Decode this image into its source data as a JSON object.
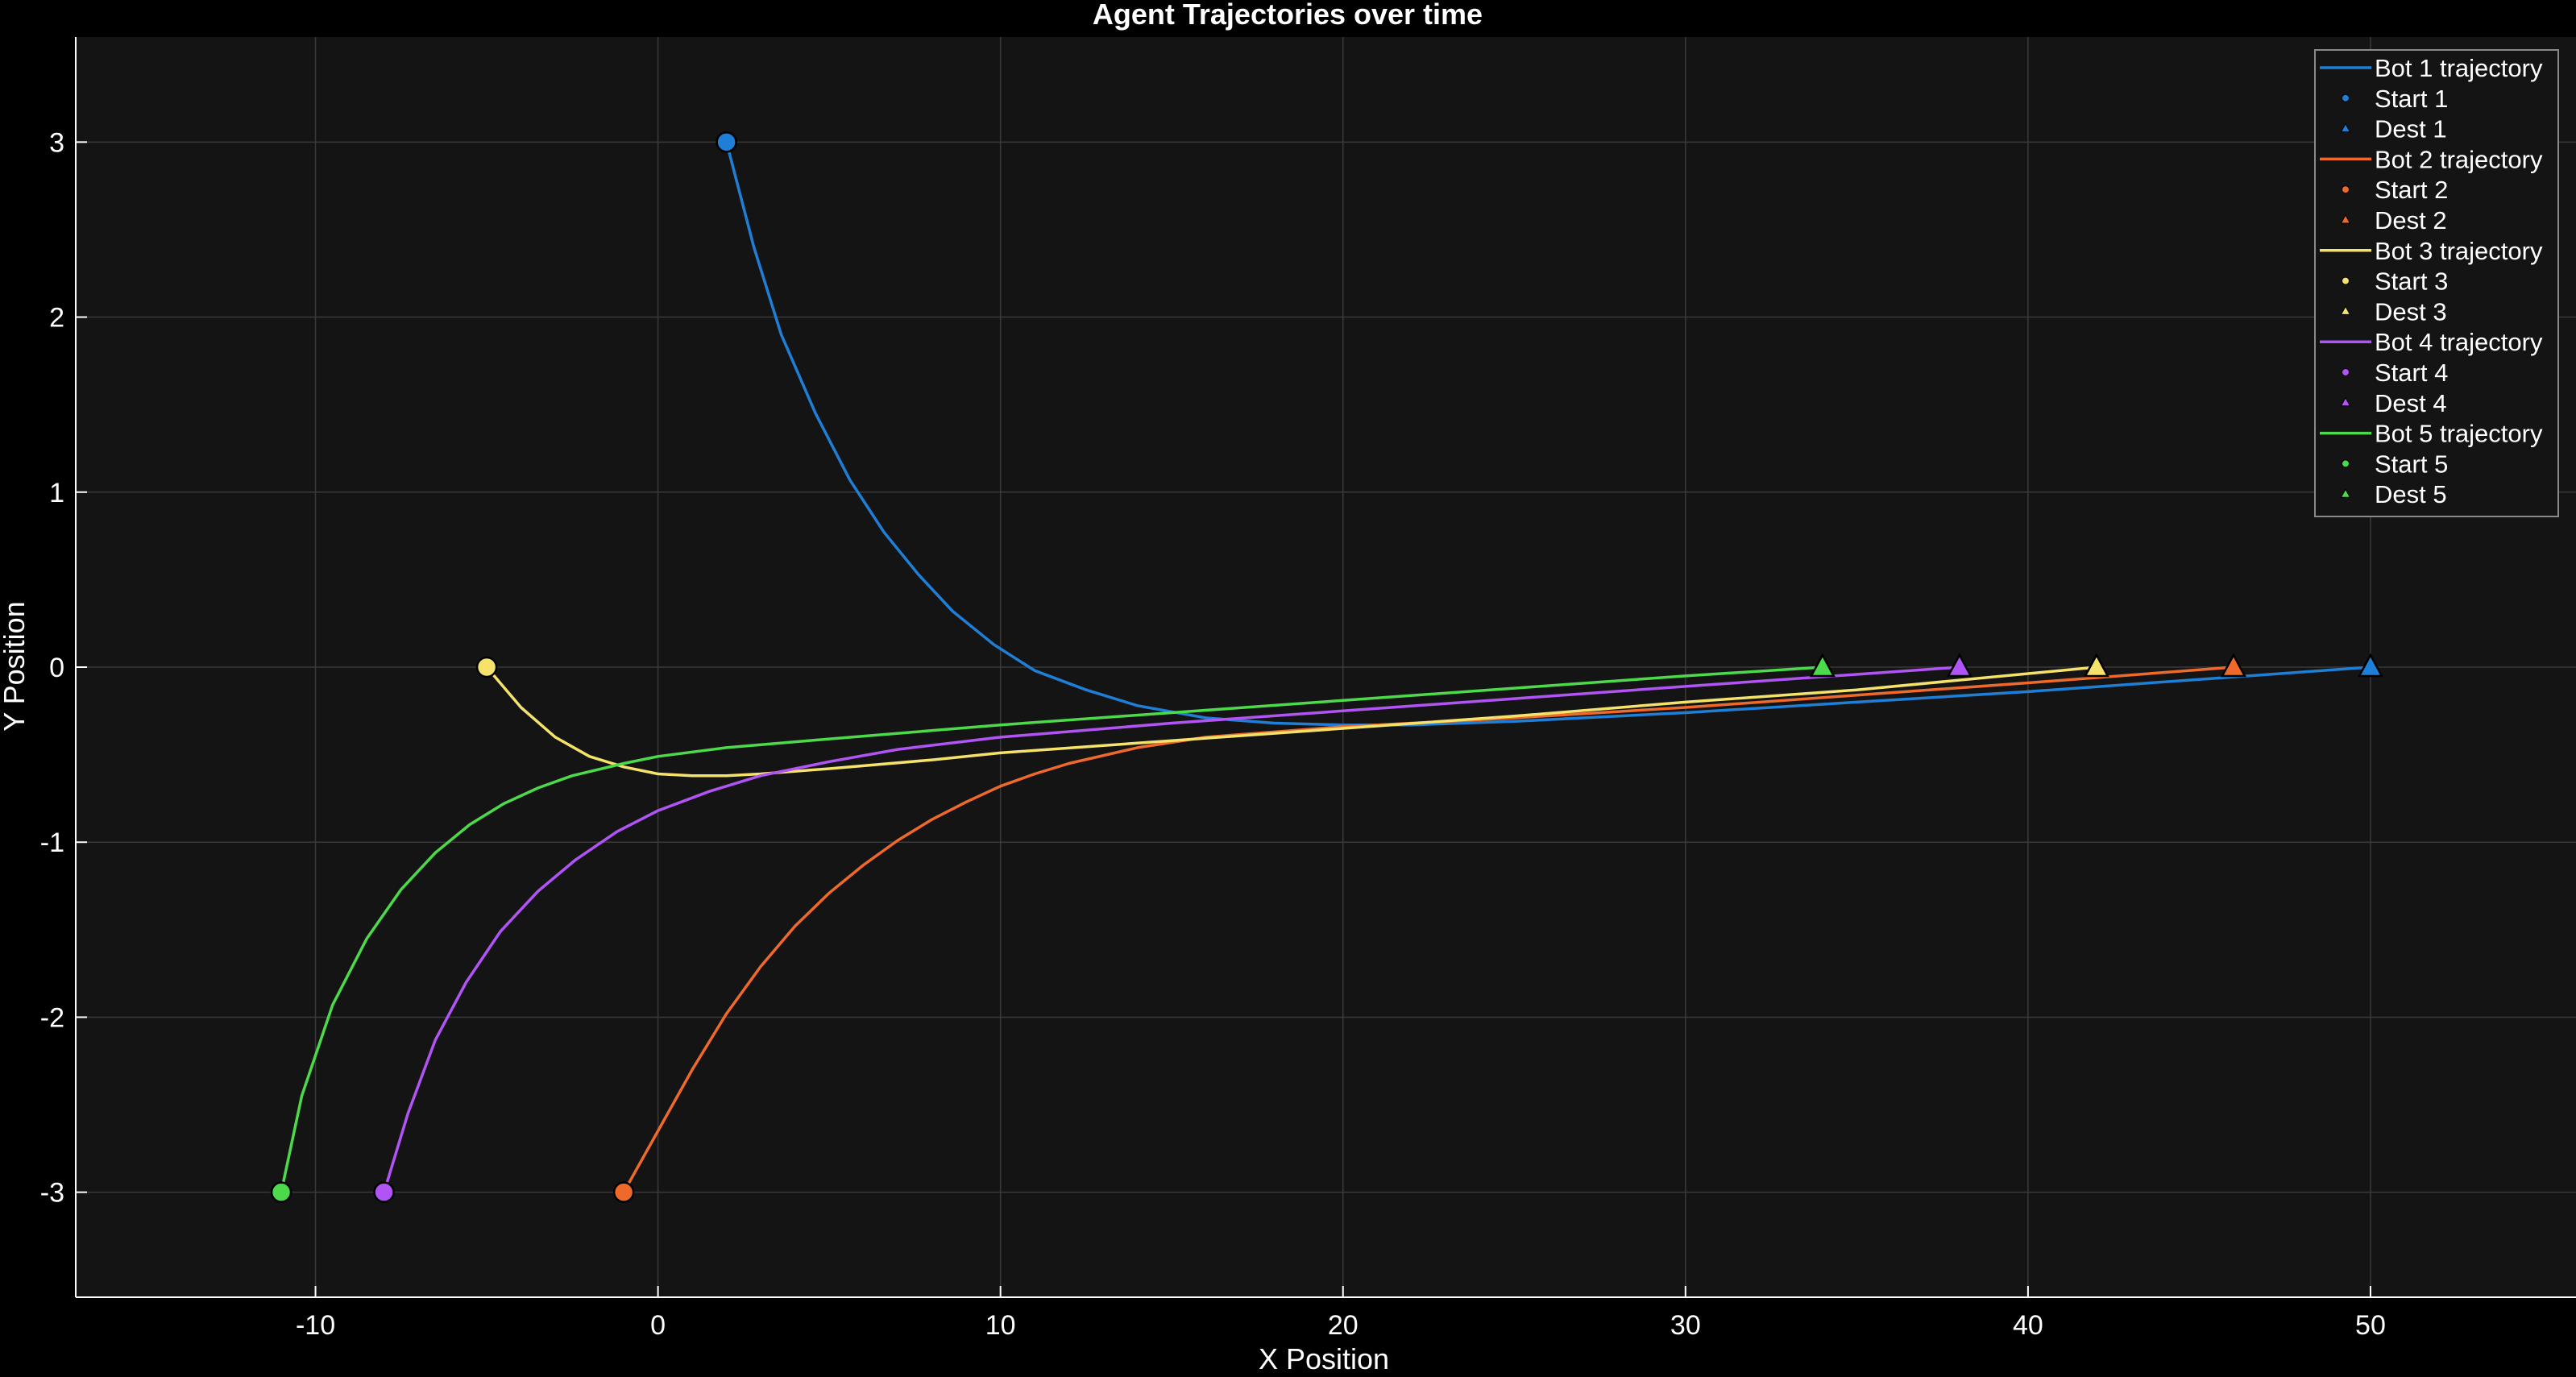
{
  "chart_data": {
    "type": "line",
    "title": "Agent Trajectories over time",
    "xlabel": "X Position",
    "ylabel": "Y Position",
    "xlim": [
      -17,
      56
    ],
    "ylim": [
      -3.6,
      3.6
    ],
    "xticks": [
      -10,
      0,
      10,
      20,
      30,
      40,
      50
    ],
    "yticks": [
      -3,
      -2,
      -1,
      0,
      1,
      2,
      3
    ],
    "xtick_labels": [
      "-10",
      "0",
      "10",
      "20",
      "30",
      "40",
      "50"
    ],
    "ytick_labels": [
      "-3",
      "-2",
      "-1",
      "0",
      "1",
      "2",
      "3"
    ],
    "grid": true,
    "legend_position": "top-right",
    "colors": {
      "background": "#000000",
      "axes_background": "#141414",
      "axis_line": "#ffffff",
      "grid": "#3a3a3a",
      "text": "#ffffff"
    },
    "series": [
      {
        "name": "Bot 1 trajectory",
        "start_label": "Start 1",
        "dest_label": "Dest 1",
        "color": "#1f7fd6",
        "start": [
          2,
          3
        ],
        "dest": [
          50,
          0
        ],
        "x": [
          2,
          2.8,
          3.6,
          4.6,
          5.6,
          6.6,
          7.6,
          8.6,
          9.8,
          11,
          12.5,
          14,
          16,
          18,
          20,
          22,
          25,
          30,
          35,
          40,
          45,
          50
        ],
        "y": [
          3,
          2.4,
          1.9,
          1.45,
          1.07,
          0.77,
          0.53,
          0.32,
          0.13,
          -0.02,
          -0.13,
          -0.22,
          -0.29,
          -0.32,
          -0.33,
          -0.33,
          -0.31,
          -0.26,
          -0.2,
          -0.14,
          -0.07,
          0
        ]
      },
      {
        "name": "Bot 2 trajectory",
        "start_label": "Start 2",
        "dest_label": "Dest 2",
        "color": "#ef6a2a",
        "start": [
          -1,
          -3
        ],
        "dest": [
          46,
          0
        ],
        "x": [
          -1,
          0,
          1,
          2,
          3,
          4,
          5,
          6,
          7,
          8,
          9,
          10,
          11,
          12,
          14,
          16,
          18,
          20,
          25,
          30,
          35,
          40,
          46
        ],
        "y": [
          -3,
          -2.65,
          -2.3,
          -1.98,
          -1.71,
          -1.48,
          -1.29,
          -1.13,
          -0.99,
          -0.87,
          -0.77,
          -0.68,
          -0.61,
          -0.55,
          -0.46,
          -0.4,
          -0.37,
          -0.34,
          -0.29,
          -0.23,
          -0.16,
          -0.09,
          0
        ]
      },
      {
        "name": "Bot 3 trajectory",
        "start_label": "Start 3",
        "dest_label": "Dest 3",
        "color": "#f5e26a",
        "start": [
          -5,
          0
        ],
        "dest": [
          42,
          0
        ],
        "x": [
          -5,
          -4,
          -3,
          -2,
          -1,
          0,
          1,
          2,
          3,
          5,
          8,
          10,
          15,
          20,
          25,
          30,
          35,
          42
        ],
        "y": [
          0,
          -0.23,
          -0.4,
          -0.51,
          -0.57,
          -0.61,
          -0.62,
          -0.62,
          -0.61,
          -0.58,
          -0.53,
          -0.49,
          -0.42,
          -0.35,
          -0.28,
          -0.2,
          -0.13,
          0
        ]
      },
      {
        "name": "Bot 4 trajectory",
        "start_label": "Start 4",
        "dest_label": "Dest 4",
        "color": "#b154f5",
        "start": [
          -8,
          -3
        ],
        "dest": [
          38,
          0
        ],
        "x": [
          -8,
          -7.3,
          -6.5,
          -5.6,
          -4.6,
          -3.5,
          -2.4,
          -1.2,
          0,
          1.5,
          3,
          5,
          7,
          10,
          15,
          20,
          25,
          30,
          38
        ],
        "y": [
          -3,
          -2.55,
          -2.13,
          -1.8,
          -1.51,
          -1.28,
          -1.1,
          -0.94,
          -0.82,
          -0.71,
          -0.62,
          -0.54,
          -0.47,
          -0.4,
          -0.32,
          -0.25,
          -0.18,
          -0.11,
          0
        ]
      },
      {
        "name": "Bot 5 trajectory",
        "start_label": "Start 5",
        "dest_label": "Dest 5",
        "color": "#4cd94a",
        "start": [
          -11,
          -3
        ],
        "dest": [
          34,
          0
        ],
        "x": [
          -11,
          -10.4,
          -9.5,
          -8.5,
          -7.5,
          -6.5,
          -5.5,
          -4.5,
          -3.5,
          -2.5,
          -1,
          0,
          2,
          5,
          10,
          15,
          20,
          25,
          30,
          34
        ],
        "y": [
          -3,
          -2.45,
          -1.93,
          -1.55,
          -1.27,
          -1.06,
          -0.9,
          -0.78,
          -0.69,
          -0.62,
          -0.55,
          -0.51,
          -0.46,
          -0.41,
          -0.33,
          -0.26,
          -0.19,
          -0.12,
          -0.05,
          0
        ]
      }
    ]
  }
}
